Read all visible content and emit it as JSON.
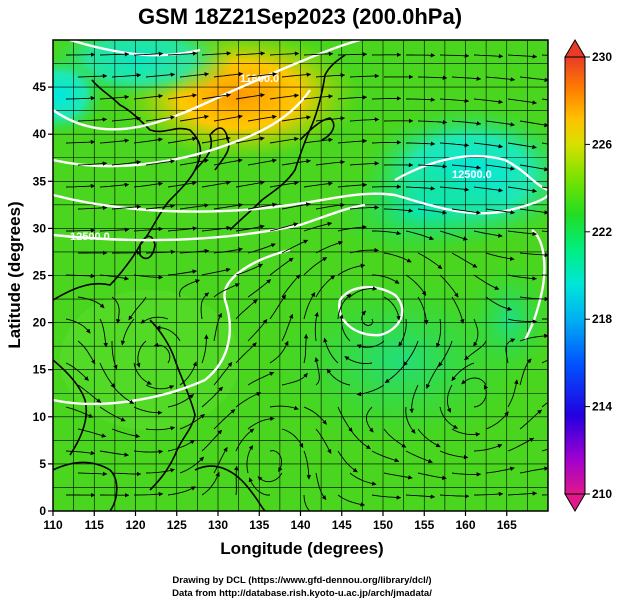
{
  "title": "GSM 18Z21Sep2023 (200.0hPa)",
  "xlabel": "Longitude (degrees)",
  "ylabel": "Latitude  (degrees)",
  "x_ticks": [
    "110",
    "115",
    "120",
    "125",
    "130",
    "135",
    "140",
    "145",
    "150",
    "155",
    "160",
    "165"
  ],
  "y_ticks": [
    "0",
    "5",
    "10",
    "15",
    "20",
    "25",
    "30",
    "35",
    "40",
    "45"
  ],
  "colorbar": {
    "ticks": [
      "230",
      "226",
      "222",
      "218",
      "214",
      "210"
    ],
    "colors": [
      "#d7196e",
      "#b300c8",
      "#4b00e0",
      "#0033ff",
      "#0099ff",
      "#00e0e0",
      "#00f0a0",
      "#22dd22",
      "#55e000",
      "#88e600",
      "#ffd400",
      "#ff9900",
      "#ff5500",
      "#e8402a"
    ]
  },
  "contour_labels": [
    "11800.0",
    "12500.0",
    "12500.0"
  ],
  "credits": {
    "line1": "Drawing by DCL (https://www.gfd-dennou.org/library/dcl/)",
    "line2": "Data from http://database.rish.kyoto-u.ac.jp/arch/jmadata/"
  },
  "map": {
    "lon_range": [
      110,
      170
    ],
    "lat_range": [
      0,
      50
    ],
    "grid_step_deg": 2.5
  }
}
